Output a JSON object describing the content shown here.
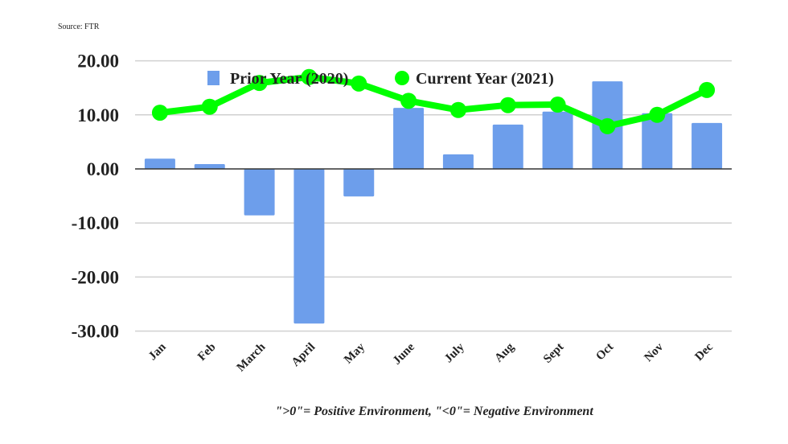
{
  "source": "Source: FTR",
  "footnote": "\">0\"= Positive Environment, \"<0\"= Negative Environment",
  "chart_data": {
    "type": "bar",
    "categories": [
      "Jan",
      "Feb",
      "March",
      "April",
      "May",
      "June",
      "July",
      "Aug",
      "Sept",
      "Oct",
      "Nov",
      "Dec"
    ],
    "series": [
      {
        "name": "Prior Year (2020)",
        "type": "bar",
        "color": "#6d9eeb",
        "values": [
          1.9,
          0.9,
          -8.6,
          -28.6,
          -5.1,
          11.3,
          2.7,
          8.2,
          10.6,
          16.2,
          10.3,
          8.5
        ]
      },
      {
        "name": "Current Year (2021)",
        "type": "line",
        "color": "#00ff00",
        "values": [
          10.4,
          11.5,
          15.9,
          17.0,
          15.8,
          12.6,
          10.9,
          11.8,
          11.9,
          7.9,
          10.0,
          14.6
        ]
      }
    ],
    "yticks": [
      "20.00",
      "10.00",
      "0.00",
      "-10.00",
      "-20.00",
      "-30.00"
    ],
    "ytick_values": [
      20,
      10,
      0,
      -10,
      -20,
      -30
    ],
    "ylim": [
      -30,
      20
    ],
    "grid": true,
    "legend": "top-center",
    "xlabel": "",
    "ylabel": "",
    "title": ""
  }
}
